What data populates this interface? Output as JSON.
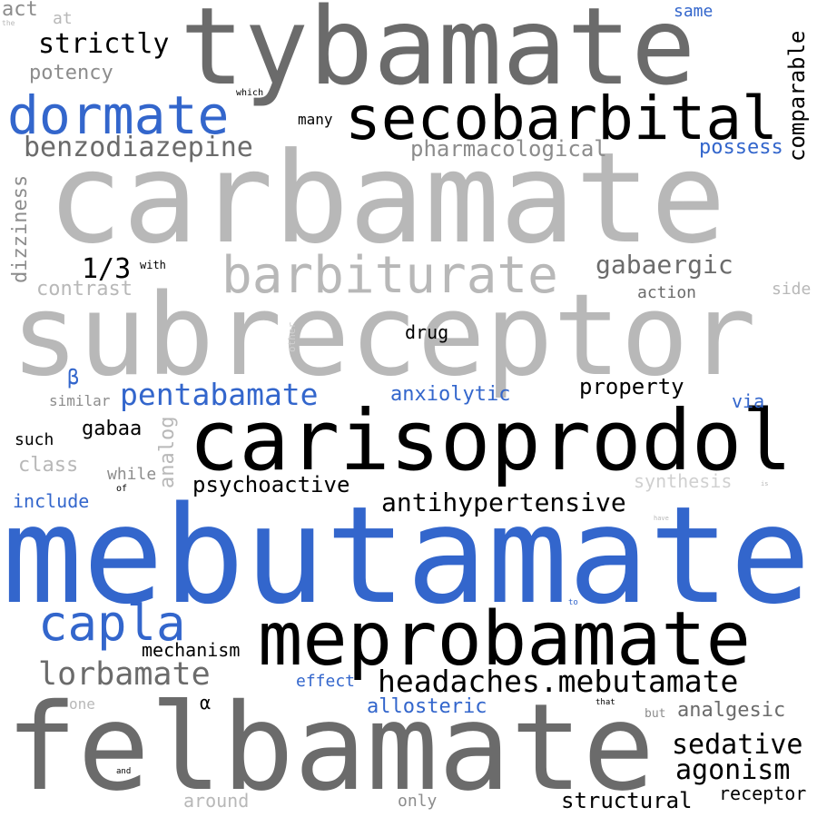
{
  "colors": {
    "black": "#000000",
    "dark_gray": "#6b6b6b",
    "gray": "#8c8c8c",
    "light_gray": "#b8b8b8",
    "blue": "#3366cc"
  },
  "words": {
    "mebutamate": "mebutamate",
    "carbamate": "carbamate",
    "subreceptor": "subreceptor",
    "tybamate": "tybamate",
    "felbamate": "felbamate",
    "carisoprodol": "carisoprodol",
    "meprobamate": "meprobamate",
    "secobarbital": "secobarbital",
    "barbiturate": "barbiturate",
    "dormate": "dormate",
    "capla": "capla",
    "headaches_mebutamate": "headaches.mebutamate",
    "lorbamate": "lorbamate",
    "pentabamate": "pentabamate",
    "antihypertensive": "antihypertensive",
    "benzodiazepine": "benzodiazepine",
    "strictly": "strictly",
    "gabaergic": "gabaergic",
    "sedative": "sedative",
    "agonism": "agonism",
    "pharmacological": "pharmacological",
    "comparable": "comparable",
    "psychoactive": "psychoactive",
    "property": "property",
    "anxiolytic": "anxiolytic",
    "allosteric": "allosteric",
    "analgesic": "analgesic",
    "structural": "structural",
    "one_third": "1/3",
    "potency": "potency",
    "possess": "possess",
    "dizziness": "dizziness",
    "contrast": "contrast",
    "gabaa": "gabaa",
    "analog": "analog",
    "class": "class",
    "include": "include",
    "synthesis": "synthesis",
    "mechanism": "mechanism",
    "effect": "effect",
    "receptor": "receptor",
    "around": "around",
    "only": "only",
    "act": "act",
    "at": "at",
    "same": "same",
    "many": "many",
    "drug": "drug",
    "action": "action",
    "side": "side",
    "beta": "β",
    "similar": "similar",
    "via": "via",
    "such": "such",
    "while": "while",
    "alpha": "α",
    "one": "one",
    "but": "but",
    "with": "with",
    "which": "which",
    "the": "the",
    "other": "other",
    "of": "of",
    "to": "to",
    "that": "that",
    "and": "and",
    "have": "have",
    "is": "is"
  }
}
